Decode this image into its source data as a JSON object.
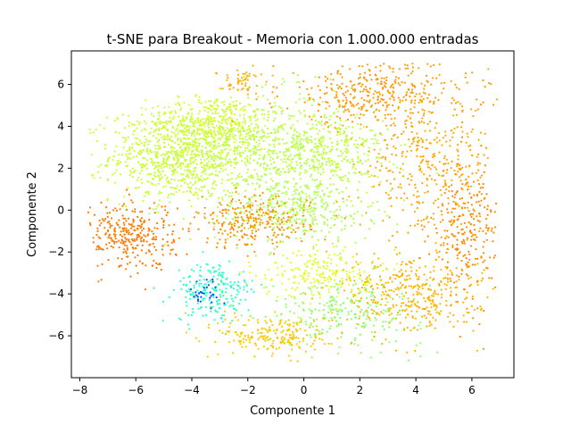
{
  "chart_data": {
    "type": "scatter",
    "title": "t-SNE para Breakout - Memoria con 1.000.000 entradas",
    "xlabel": "Componente 1",
    "ylabel": "Componente 2",
    "xlim": [
      -8.3,
      7.5
    ],
    "ylim": [
      -8.0,
      7.6
    ],
    "xticks": [
      -8,
      -6,
      -4,
      -2,
      0,
      2,
      4,
      6
    ],
    "yticks": [
      -6,
      -4,
      -2,
      0,
      2,
      4,
      6
    ],
    "grid": false,
    "colormap": "jet",
    "clusters": [
      {
        "region": "left-green",
        "cx": -4.3,
        "cy": 2.6,
        "sx": 1.3,
        "sy": 1.1,
        "color": "#c8ff37",
        "share": 0.18
      },
      {
        "region": "left-green-upper",
        "cx": -3.2,
        "cy": 4.2,
        "sx": 1.1,
        "sy": 0.6,
        "color": "#d4ff2b",
        "share": 0.06
      },
      {
        "region": "center-green",
        "cx": -1.0,
        "cy": 3.0,
        "sx": 1.3,
        "sy": 1.3,
        "color": "#b8ff47",
        "share": 0.09
      },
      {
        "region": "center-top-green",
        "cx": 1.0,
        "cy": 2.8,
        "sx": 1.0,
        "sy": 1.0,
        "color": "#c0ff3f",
        "share": 0.06
      },
      {
        "region": "center-lower-green",
        "cx": -0.3,
        "cy": 0.0,
        "sx": 1.4,
        "sy": 0.8,
        "color": "#b0ff4f",
        "share": 0.07
      },
      {
        "region": "right-top-orange",
        "cx": 2.6,
        "cy": 5.6,
        "sx": 1.7,
        "sy": 0.8,
        "color": "#ff9a00",
        "share": 0.07
      },
      {
        "region": "right-orange",
        "cx": 4.4,
        "cy": 2.2,
        "sx": 1.2,
        "sy": 1.6,
        "color": "#ffa800",
        "share": 0.07
      },
      {
        "region": "far-right-orange",
        "cx": 5.8,
        "cy": -1.0,
        "sx": 0.6,
        "sy": 1.6,
        "color": "#ff8c00",
        "share": 0.05
      },
      {
        "region": "left-orange",
        "cx": -6.2,
        "cy": -1.2,
        "sx": 0.8,
        "sy": 0.8,
        "color": "#ff7a00",
        "share": 0.06
      },
      {
        "region": "center-orange-band",
        "cx": -1.8,
        "cy": -0.6,
        "sx": 1.0,
        "sy": 0.6,
        "color": "#ff9000",
        "share": 0.05
      },
      {
        "region": "cyan-cluster",
        "cx": -3.2,
        "cy": -3.9,
        "sx": 0.7,
        "sy": 0.7,
        "color": "#2fffc8",
        "share": 0.04
      },
      {
        "region": "blue-core",
        "cx": -3.5,
        "cy": -3.9,
        "sx": 0.35,
        "sy": 0.35,
        "color": "#0050ff",
        "share": 0.006
      },
      {
        "region": "lower-green",
        "cx": 1.5,
        "cy": -4.8,
        "sx": 1.4,
        "sy": 0.8,
        "color": "#90ff67",
        "share": 0.05
      },
      {
        "region": "lower-right-orange",
        "cx": 3.8,
        "cy": -4.0,
        "sx": 1.2,
        "sy": 1.0,
        "color": "#ffb400",
        "share": 0.07
      },
      {
        "region": "lower-center-yellow",
        "cx": -1.0,
        "cy": -6.0,
        "sx": 1.0,
        "sy": 0.5,
        "color": "#ffc800",
        "share": 0.04
      },
      {
        "region": "bottom-mix",
        "cx": 0.5,
        "cy": -3.0,
        "sx": 1.0,
        "sy": 0.6,
        "color": "#e0ff1f",
        "share": 0.04
      },
      {
        "region": "upper-strand",
        "cx": -2.3,
        "cy": 6.2,
        "sx": 0.4,
        "sy": 0.3,
        "color": "#ffb000",
        "share": 0.01
      }
    ]
  }
}
